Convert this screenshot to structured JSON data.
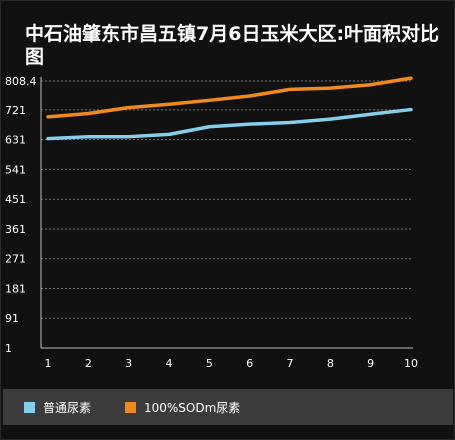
{
  "chart_data": {
    "type": "line",
    "title": "中石油肇东市昌五镇7月6日玉米大区:叶面积对比图",
    "xlabel": "",
    "ylabel": "",
    "x": [
      1,
      2,
      3,
      4,
      5,
      6,
      7,
      8,
      9,
      10
    ],
    "x_tick_labels": [
      "1",
      "2",
      "3",
      "4",
      "5",
      "6",
      "7",
      "8",
      "9",
      "10"
    ],
    "y_tick_labels": [
      "1",
      "91",
      "181",
      "271",
      "361",
      "451",
      "541",
      "631",
      "721",
      "808.4"
    ],
    "y_ticks": [
      1,
      91,
      181,
      271,
      361,
      451,
      541,
      631,
      721,
      808.4
    ],
    "ylim": [
      1,
      808.4
    ],
    "grid": true,
    "legend_position": "bottom",
    "series": [
      {
        "name": "普通尿素",
        "color": "#87ceeb",
        "values": [
          634,
          640,
          640,
          647,
          670,
          678,
          683,
          693,
          708,
          722
        ]
      },
      {
        "name": "100%SODm尿素",
        "color": "#f08a1c",
        "values": [
          700,
          710,
          728,
          738,
          750,
          763,
          783,
          787,
          797,
          817
        ]
      }
    ]
  }
}
